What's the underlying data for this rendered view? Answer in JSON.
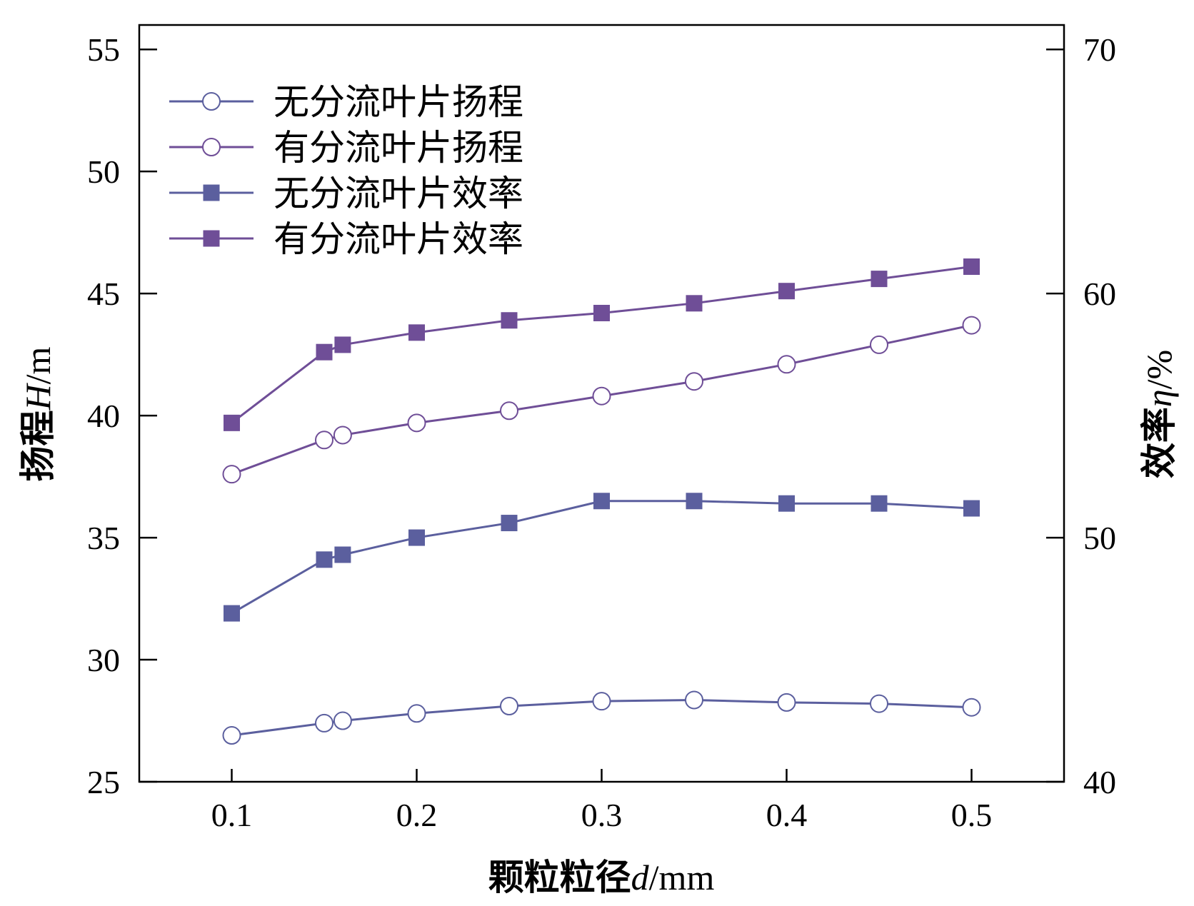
{
  "chart_data": {
    "type": "line",
    "xlabel": {
      "prefix": "颗粒粒径",
      "var": "d",
      "unit": "/mm"
    },
    "ylabel_left": {
      "prefix": "扬程",
      "var": "H",
      "unit": "/m"
    },
    "ylabel_right": {
      "prefix": "效率",
      "var": "η",
      "unit": "/%"
    },
    "xlim": [
      0.05,
      0.55
    ],
    "ylim_left": [
      25,
      56
    ],
    "ylim_right": [
      40,
      71
    ],
    "x_ticks": [
      0.1,
      0.2,
      0.3,
      0.4,
      0.5
    ],
    "x_tick_labels": [
      "0.1",
      "0.2",
      "0.3",
      "0.4",
      "0.5"
    ],
    "y_left_ticks": [
      25,
      30,
      35,
      40,
      45,
      50,
      55
    ],
    "y_left_tick_labels": [
      "25",
      "30",
      "35",
      "40",
      "45",
      "50",
      "55"
    ],
    "y_right_ticks": [
      40,
      50,
      60,
      70
    ],
    "y_right_tick_labels": [
      "40",
      "50",
      "60",
      "70"
    ],
    "grid": false,
    "legend_position": "top-left",
    "x": [
      0.1,
      0.15,
      0.16,
      0.2,
      0.25,
      0.3,
      0.35,
      0.4,
      0.45,
      0.5
    ],
    "series": [
      {
        "name": "无分流叶片扬程",
        "axis": "left",
        "marker": "circle-open",
        "color": "#5b5f9e",
        "values": [
          26.9,
          27.4,
          27.5,
          27.8,
          28.1,
          28.3,
          28.35,
          28.25,
          28.2,
          28.05
        ]
      },
      {
        "name": "有分流叶片扬程",
        "axis": "left",
        "marker": "circle-open",
        "color": "#6f4e97",
        "values": [
          37.6,
          39.0,
          39.2,
          39.7,
          40.2,
          40.8,
          41.4,
          42.1,
          42.9,
          43.7
        ]
      },
      {
        "name": "无分流叶片效率",
        "axis": "right",
        "marker": "square-filled",
        "color": "#5b5f9e",
        "values": [
          46.9,
          49.1,
          49.3,
          50.0,
          50.6,
          51.5,
          51.5,
          51.4,
          51.4,
          51.2
        ]
      },
      {
        "name": "有分流叶片效率",
        "axis": "right",
        "marker": "square-filled",
        "color": "#6f4e97",
        "values": [
          54.7,
          57.6,
          57.9,
          58.4,
          58.9,
          59.2,
          59.6,
          60.1,
          60.6,
          61.1
        ]
      }
    ]
  }
}
